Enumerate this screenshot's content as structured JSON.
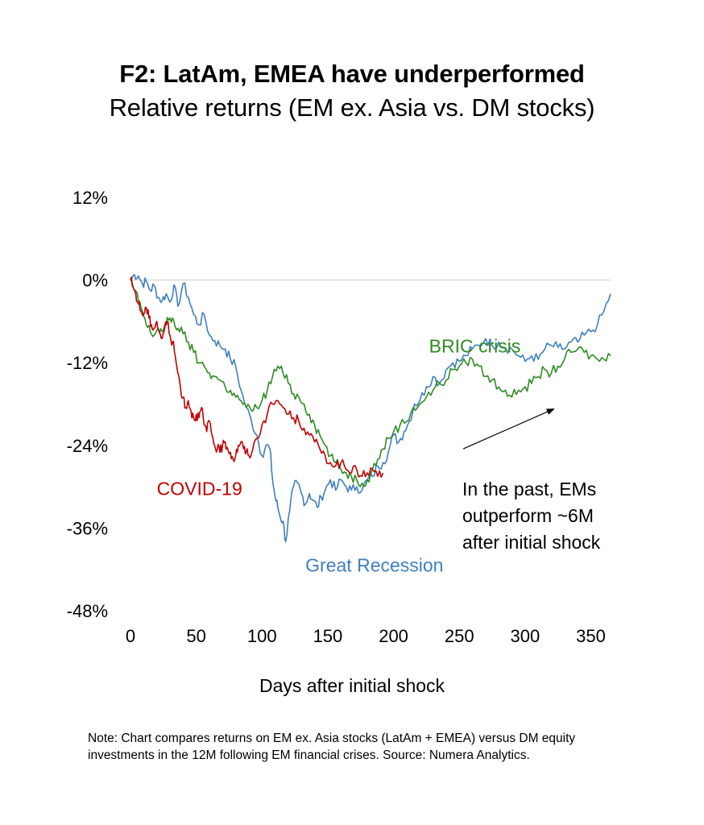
{
  "header": {
    "title": "F2: LatAm, EMEA have underperformed",
    "subtitle": "Relative returns (EM ex. Asia vs. DM stocks)"
  },
  "note": {
    "line1": "Note: Chart compares returns on EM ex. Asia stocks (LatAm + EMEA) versus DM equity",
    "line2": "investments in the 12M following EM financial crises. Source: Numera Analytics."
  },
  "annotation": {
    "lines": [
      "In the past, EMs",
      "outperform ~6M",
      "after initial shock"
    ],
    "arrow": {
      "from": [
        253,
        -24.5
      ],
      "to": [
        322,
        -18.7
      ]
    }
  },
  "chart_data": {
    "type": "line",
    "xlabel": "Days after initial shock",
    "ylabel": "",
    "xlim": [
      0,
      365
    ],
    "ylim": [
      -48,
      12
    ],
    "xticks": [
      0,
      50,
      100,
      150,
      200,
      250,
      300,
      350
    ],
    "yticks": [
      12,
      0,
      -12,
      -24,
      -36,
      -48
    ],
    "ytick_labels": [
      "12%",
      "0%",
      "-12%",
      "-24%",
      "-36%",
      "-48%"
    ],
    "zero_line": true,
    "series": [
      {
        "name": "Great Recession",
        "color": "#3f7fbf",
        "label_at": [
          133,
          -42.3
        ],
        "x": [
          0,
          3,
          6,
          9,
          12,
          15,
          18,
          21,
          24,
          27,
          30,
          33,
          36,
          40,
          44,
          48,
          52,
          56,
          60,
          64,
          68,
          72,
          76,
          80,
          84,
          88,
          92,
          96,
          100,
          103,
          106,
          108,
          110,
          112,
          114,
          116,
          118,
          121,
          124,
          127,
          130,
          133,
          136,
          139,
          142,
          145,
          148,
          152,
          156,
          160,
          164,
          168,
          172,
          176,
          180,
          184,
          188,
          192,
          196,
          200,
          204,
          208,
          212,
          216,
          220,
          225,
          230,
          235,
          240,
          245,
          250,
          255,
          260,
          265,
          270,
          275,
          280,
          285,
          290,
          295,
          300,
          305,
          310,
          315,
          320,
          325,
          330,
          335,
          340,
          345,
          350,
          355,
          360,
          365
        ],
        "values": [
          0,
          0.8,
          0.6,
          -0.5,
          -0.2,
          -1.5,
          -0.8,
          -2.5,
          -3.0,
          -2.0,
          -3.2,
          -0.7,
          -3.8,
          -0.5,
          -2.5,
          -5.0,
          -6.5,
          -5.0,
          -8.0,
          -8.8,
          -9.5,
          -10.0,
          -11.5,
          -12.5,
          -16.0,
          -18.5,
          -20.5,
          -22.5,
          -25.5,
          -24.0,
          -24.5,
          -29.0,
          -31.5,
          -33.0,
          -34.5,
          -35.0,
          -38.0,
          -33.5,
          -30.0,
          -29.5,
          -31.0,
          -32.5,
          -31.0,
          -32.0,
          -33.0,
          -31.5,
          -30.5,
          -29.0,
          -30.5,
          -29.0,
          -30.0,
          -30.5,
          -30.0,
          -30.5,
          -29.0,
          -28.5,
          -27.0,
          -26.5,
          -25.0,
          -22.5,
          -23.5,
          -22.0,
          -20.5,
          -18.0,
          -17.5,
          -15.5,
          -14.0,
          -15.0,
          -13.0,
          -12.0,
          -11.8,
          -11.0,
          -10.0,
          -9.5,
          -8.5,
          -9.5,
          -9.0,
          -9.8,
          -10.0,
          -11.0,
          -11.8,
          -11.0,
          -11.5,
          -10.0,
          -9.5,
          -9.8,
          -10.0,
          -9.0,
          -9.0,
          -8.0,
          -7.5,
          -6.5,
          -4.5,
          -2.0
        ]
      },
      {
        "name": "BRIC crisis",
        "color": "#2e8b22",
        "label_at": [
          227,
          -10.5
        ],
        "x": [
          0,
          3,
          6,
          9,
          12,
          15,
          18,
          21,
          24,
          27,
          30,
          33,
          36,
          40,
          44,
          48,
          52,
          56,
          60,
          64,
          68,
          72,
          76,
          80,
          84,
          88,
          92,
          96,
          100,
          104,
          108,
          112,
          116,
          120,
          124,
          128,
          132,
          136,
          140,
          144,
          148,
          152,
          156,
          160,
          164,
          168,
          172,
          176,
          180,
          184,
          188,
          192,
          196,
          200,
          205,
          210,
          215,
          220,
          225,
          230,
          235,
          240,
          245,
          250,
          255,
          260,
          265,
          270,
          275,
          280,
          285,
          290,
          295,
          300,
          305,
          310,
          315,
          320,
          325,
          330,
          335,
          340,
          345,
          350,
          355,
          360,
          365
        ],
        "values": [
          0,
          -1.5,
          -3.0,
          -4.5,
          -6.5,
          -7.5,
          -8.0,
          -7.0,
          -7.5,
          -6.5,
          -5.5,
          -6.0,
          -7.0,
          -7.8,
          -9.0,
          -10.5,
          -12.0,
          -12.5,
          -13.5,
          -14.0,
          -14.5,
          -15.5,
          -16.0,
          -17.0,
          -17.5,
          -18.5,
          -19.0,
          -18.5,
          -17.5,
          -16.0,
          -14.0,
          -12.5,
          -13.5,
          -15.0,
          -16.5,
          -17.0,
          -18.0,
          -19.5,
          -21.0,
          -22.5,
          -24.0,
          -25.5,
          -26.5,
          -27.5,
          -28.0,
          -28.5,
          -29.0,
          -29.5,
          -29.0,
          -27.5,
          -26.0,
          -24.5,
          -23.0,
          -22.0,
          -21.0,
          -20.5,
          -18.5,
          -18.0,
          -17.0,
          -16.0,
          -15.0,
          -14.5,
          -13.0,
          -12.5,
          -12.0,
          -11.5,
          -12.5,
          -14.0,
          -14.5,
          -15.5,
          -16.0,
          -17.0,
          -16.0,
          -15.5,
          -15.0,
          -14.0,
          -13.0,
          -13.5,
          -12.5,
          -11.5,
          -10.5,
          -10.0,
          -10.5,
          -11.0,
          -11.5,
          -11.5,
          -11.0
        ]
      },
      {
        "name": "COVID-19",
        "color": "#c00000",
        "label_at": [
          20,
          -31.2
        ],
        "x": [
          0,
          2,
          4,
          6,
          8,
          10,
          12,
          14,
          16,
          18,
          20,
          22,
          24,
          26,
          28,
          30,
          32,
          34,
          36,
          38,
          40,
          42,
          44,
          46,
          48,
          50,
          52,
          54,
          56,
          58,
          60,
          62,
          64,
          66,
          68,
          70,
          72,
          74,
          76,
          78,
          80,
          82,
          84,
          86,
          88,
          90,
          93,
          96,
          100,
          104,
          108,
          112,
          116,
          120,
          124,
          128,
          132,
          136,
          140,
          144,
          148,
          152,
          156,
          160,
          164,
          168,
          172,
          176,
          180,
          184,
          188,
          192
        ],
        "values": [
          0,
          -1.0,
          -2.0,
          -3.5,
          -4.5,
          -5.0,
          -4.0,
          -5.5,
          -6.5,
          -7.0,
          -6.0,
          -7.5,
          -8.5,
          -7.0,
          -6.0,
          -8.0,
          -9.0,
          -11.0,
          -13.5,
          -15.5,
          -17.0,
          -18.5,
          -17.5,
          -19.0,
          -20.0,
          -19.5,
          -20.0,
          -18.5,
          -21.0,
          -22.0,
          -20.5,
          -22.5,
          -24.0,
          -24.5,
          -25.0,
          -24.0,
          -23.5,
          -24.5,
          -25.0,
          -26.0,
          -25.5,
          -24.0,
          -23.5,
          -24.5,
          -25.0,
          -25.5,
          -24.5,
          -23.0,
          -21.0,
          -19.5,
          -18.0,
          -17.5,
          -18.5,
          -19.5,
          -20.0,
          -20.5,
          -21.5,
          -22.5,
          -23.5,
          -24.5,
          -25.5,
          -26.5,
          -27.0,
          -26.5,
          -27.5,
          -28.0,
          -27.5,
          -28.5,
          -28.0,
          -27.5,
          -28.5,
          -28.0
        ]
      }
    ]
  }
}
